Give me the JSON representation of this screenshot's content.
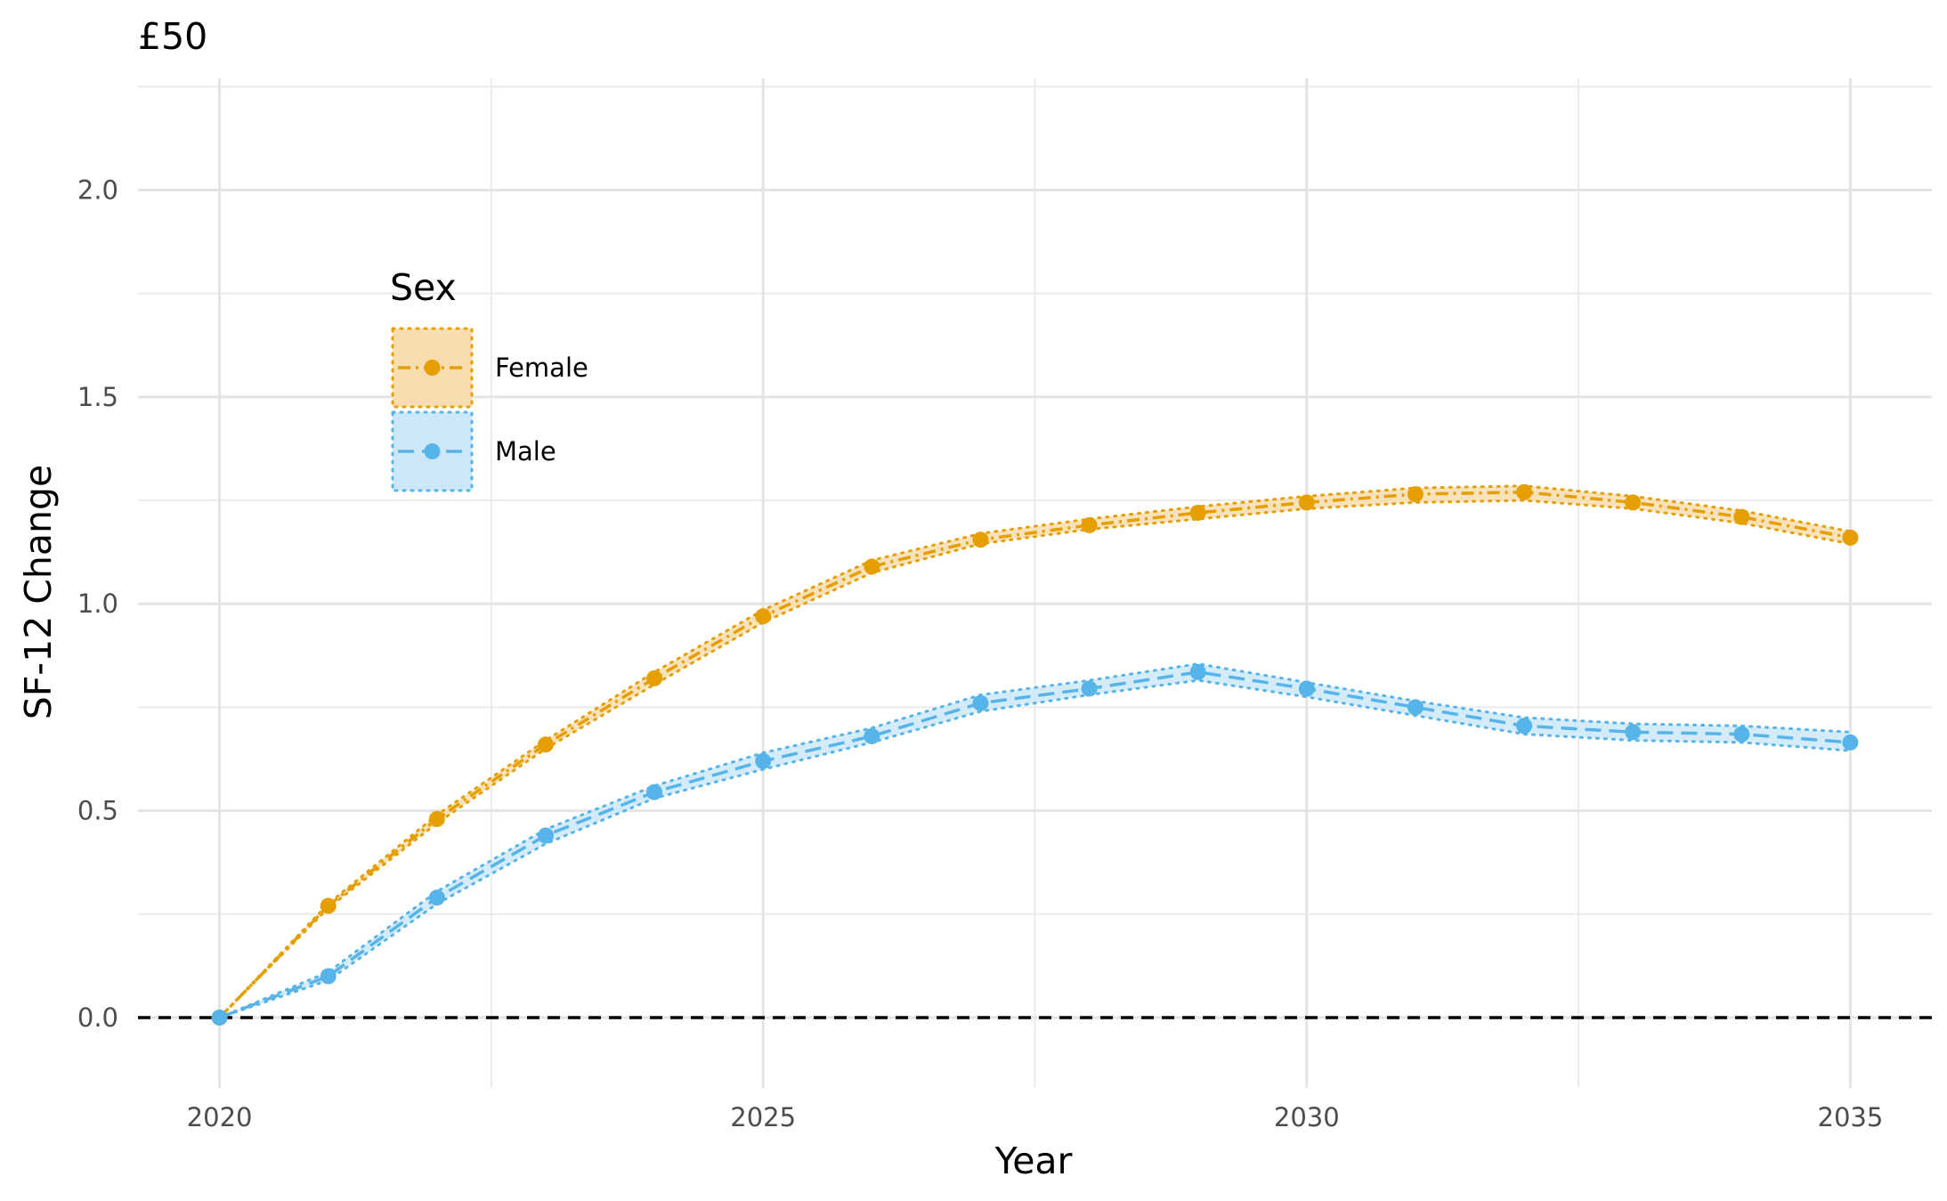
{
  "chart_data": {
    "type": "line",
    "title": "£50",
    "xlabel": "Year",
    "ylabel": "SF-12 Change",
    "xlim": [
      2019.25,
      2035.75
    ],
    "ylim": [
      -0.17,
      2.27
    ],
    "x_ticks": [
      2020,
      2025,
      2030,
      2035
    ],
    "x_tick_labels": [
      "2020",
      "2025",
      "2030",
      "2035"
    ],
    "x_minor_ticks": [
      2022.5,
      2027.5,
      2032.5
    ],
    "y_ticks": [
      0.0,
      0.5,
      1.0,
      1.5,
      2.0
    ],
    "y_tick_labels": [
      "0.0",
      "0.5",
      "1.0",
      "1.5",
      "2.0"
    ],
    "y_minor_ticks": [
      0.25,
      0.75,
      1.25,
      1.75,
      2.25
    ],
    "grid": true,
    "reference_line": {
      "y": 0,
      "style": "dashed",
      "color": "#000000"
    },
    "legend": {
      "title": "Sex",
      "position": "top-left"
    },
    "x": [
      2020,
      2021,
      2022,
      2023,
      2024,
      2025,
      2026,
      2027,
      2028,
      2029,
      2030,
      2031,
      2032,
      2033,
      2034,
      2035
    ],
    "series": [
      {
        "name": "Female",
        "color": "#E69F00",
        "fill": "#F7DDB0",
        "values": [
          0.0,
          0.27,
          0.48,
          0.66,
          0.82,
          0.97,
          1.09,
          1.155,
          1.19,
          1.22,
          1.245,
          1.265,
          1.27,
          1.245,
          1.21,
          1.16
        ],
        "lower": [
          0.0,
          0.265,
          0.47,
          0.65,
          0.805,
          0.955,
          1.075,
          1.145,
          1.18,
          1.205,
          1.23,
          1.245,
          1.25,
          1.23,
          1.195,
          1.145
        ],
        "upper": [
          0.0,
          0.275,
          0.49,
          0.67,
          0.835,
          0.985,
          1.105,
          1.17,
          1.205,
          1.235,
          1.26,
          1.28,
          1.285,
          1.26,
          1.225,
          1.175
        ]
      },
      {
        "name": "Male",
        "color": "#56B4E9",
        "fill": "#CCE8F8",
        "values": [
          0.0,
          0.1,
          0.29,
          0.44,
          0.545,
          0.62,
          0.68,
          0.76,
          0.795,
          0.835,
          0.795,
          0.75,
          0.705,
          0.69,
          0.685,
          0.665
        ],
        "lower": [
          0.0,
          0.09,
          0.275,
          0.42,
          0.53,
          0.6,
          0.665,
          0.74,
          0.78,
          0.815,
          0.775,
          0.73,
          0.685,
          0.67,
          0.665,
          0.645
        ],
        "upper": [
          0.0,
          0.11,
          0.305,
          0.455,
          0.56,
          0.64,
          0.7,
          0.78,
          0.815,
          0.855,
          0.81,
          0.765,
          0.725,
          0.71,
          0.705,
          0.69
        ]
      }
    ]
  }
}
